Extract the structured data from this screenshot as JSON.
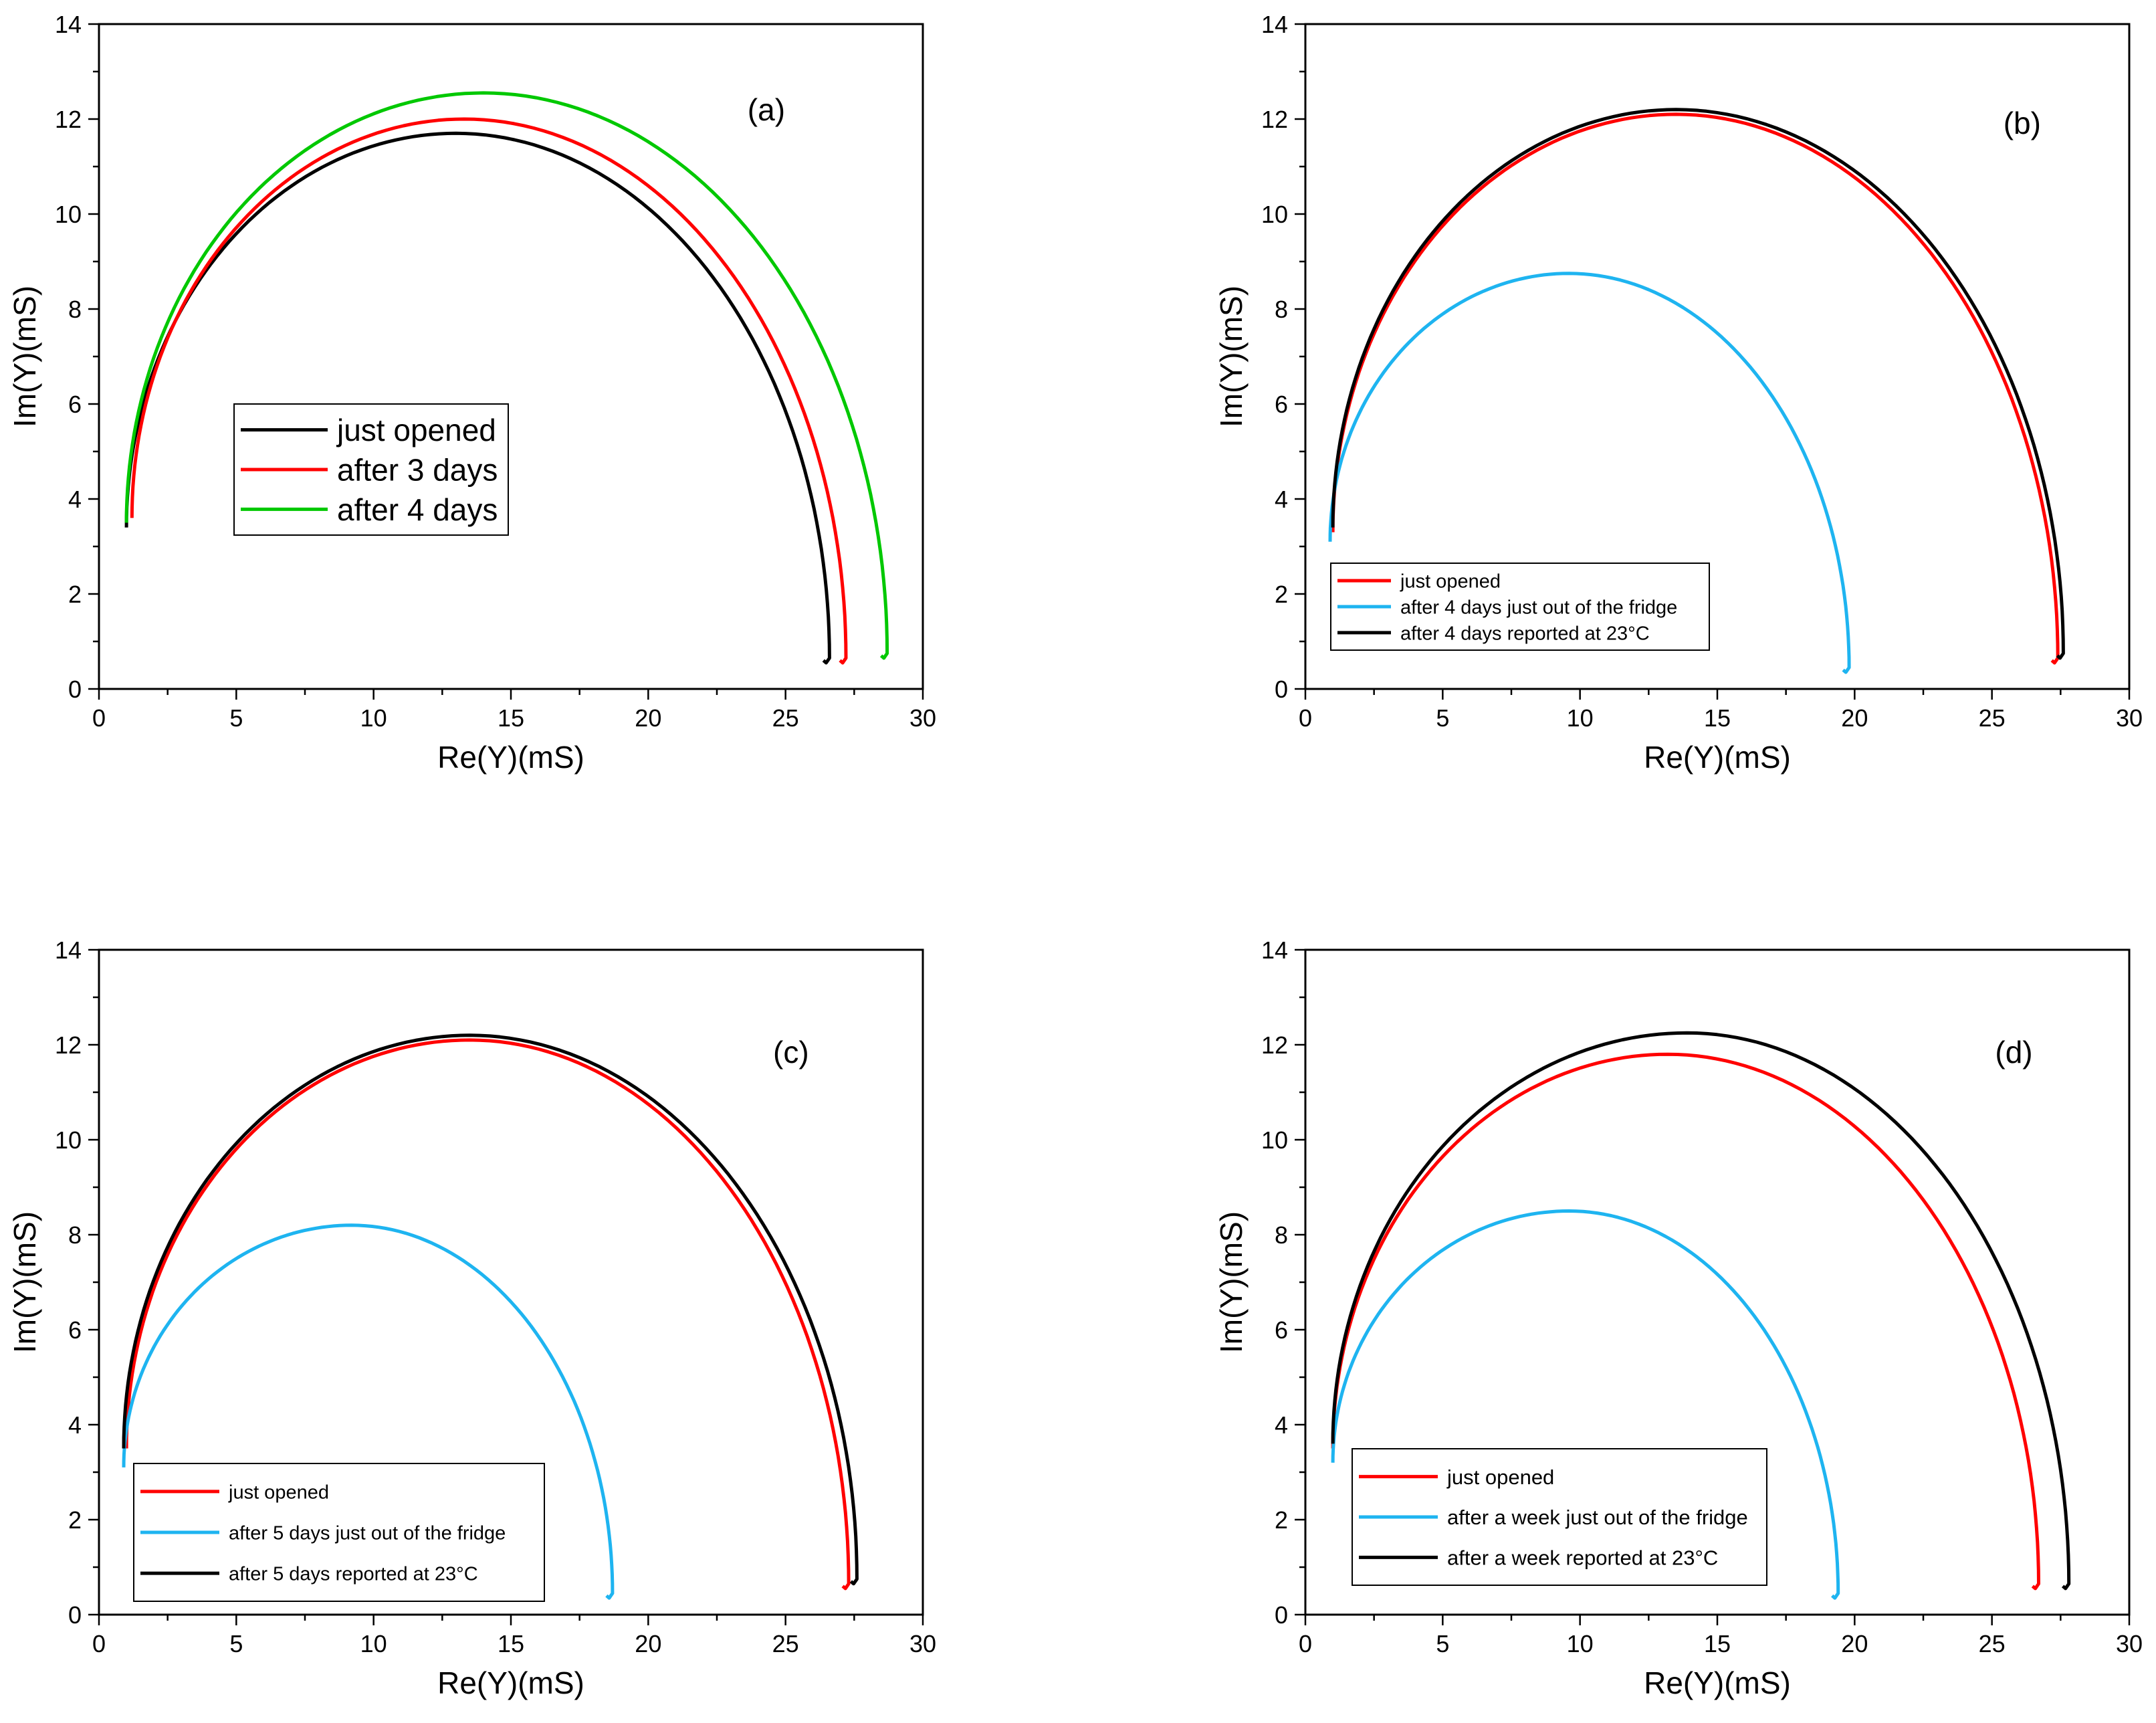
{
  "figure": {
    "description_panels": [
      "a",
      "b",
      "c",
      "d"
    ]
  },
  "chart_data": [
    {
      "type": "line",
      "panel_label": "(a)",
      "xlabel": "Re(Y)(mS)",
      "ylabel": "Im(Y)(mS)",
      "xlim": [
        0,
        30
      ],
      "ylim": [
        0,
        14
      ],
      "xticks": [
        "0",
        "5",
        "10",
        "15",
        "20",
        "25",
        "30"
      ],
      "yticks": [
        "0",
        "2",
        "4",
        "6",
        "8",
        "10",
        "12",
        "14"
      ],
      "legend_position": "center-left",
      "series": [
        {
          "name": "just opened",
          "color": "#000000",
          "start": [
            1.0,
            3.4
          ],
          "peak": [
            13.0,
            11.7
          ],
          "end_max": 26.6,
          "end_y": 0.6
        },
        {
          "name": "after 3 days",
          "color": "#ff0000",
          "start": [
            1.2,
            3.6
          ],
          "peak": [
            13.3,
            12.0
          ],
          "end_max": 27.2,
          "end_y": 0.6
        },
        {
          "name": "after 4 days",
          "color": "#00c800",
          "start": [
            1.0,
            3.5
          ],
          "peak": [
            14.0,
            12.55
          ],
          "end_max": 28.7,
          "end_y": 0.7
        }
      ]
    },
    {
      "type": "line",
      "panel_label": "(b)",
      "xlabel": "Re(Y)(mS)",
      "ylabel": "Im(Y)(mS)",
      "xlim": [
        0,
        30
      ],
      "ylim": [
        0,
        14
      ],
      "xticks": [
        "0",
        "5",
        "10",
        "15",
        "20",
        "25",
        "30"
      ],
      "yticks": [
        "0",
        "2",
        "4",
        "6",
        "8",
        "10",
        "12",
        "14"
      ],
      "legend_position": "bottom-left",
      "series": [
        {
          "name": "just opened",
          "color": "#ff0000",
          "start": [
            1.0,
            3.3
          ],
          "peak": [
            13.5,
            12.1
          ],
          "end_max": 27.4,
          "end_y": 0.6
        },
        {
          "name": "after 4 days just out of the fridge",
          "color": "#1eb4f0",
          "start": [
            0.9,
            3.1
          ],
          "peak": [
            9.6,
            8.75
          ],
          "end_max": 19.8,
          "end_y": 0.4
        },
        {
          "name": "after 4 days reported at 23°C",
          "color": "#000000",
          "start": [
            1.0,
            3.4
          ],
          "peak": [
            13.5,
            12.2
          ],
          "end_max": 27.6,
          "end_y": 0.7
        }
      ]
    },
    {
      "type": "line",
      "panel_label": "(c)",
      "xlabel": "Re(Y)(mS)",
      "ylabel": "Im(Y)(mS)",
      "xlim": [
        0,
        30
      ],
      "ylim": [
        0,
        14
      ],
      "xticks": [
        "0",
        "5",
        "10",
        "15",
        "20",
        "25",
        "30"
      ],
      "yticks": [
        "0",
        "2",
        "4",
        "6",
        "8",
        "10",
        "12",
        "14"
      ],
      "legend_position": "bottom-left",
      "series": [
        {
          "name": "just opened",
          "color": "#ff0000",
          "start": [
            1.0,
            3.5
          ],
          "peak": [
            13.5,
            12.1
          ],
          "end_max": 27.3,
          "end_y": 0.6
        },
        {
          "name": "after 5 days just out of the fridge",
          "color": "#1eb4f0",
          "start": [
            0.9,
            3.1
          ],
          "peak": [
            9.2,
            8.2
          ],
          "end_max": 18.7,
          "end_y": 0.4
        },
        {
          "name": "after 5 days reported at 23°C",
          "color": "#000000",
          "start": [
            0.9,
            3.5
          ],
          "peak": [
            13.5,
            12.2
          ],
          "end_max": 27.6,
          "end_y": 0.7
        }
      ]
    },
    {
      "type": "line",
      "panel_label": "(d)",
      "xlabel": "Re(Y)(mS)",
      "ylabel": "Im(Y)(mS)",
      "xlim": [
        0,
        30
      ],
      "ylim": [
        0,
        14
      ],
      "xticks": [
        "0",
        "5",
        "10",
        "15",
        "20",
        "25",
        "30"
      ],
      "yticks": [
        "0",
        "2",
        "4",
        "6",
        "8",
        "10",
        "12",
        "14"
      ],
      "legend_position": "bottom-left",
      "series": [
        {
          "name": "just opened",
          "color": "#ff0000",
          "start": [
            1.0,
            3.5
          ],
          "peak": [
            13.2,
            11.8
          ],
          "end_max": 26.7,
          "end_y": 0.6
        },
        {
          "name": "after a week just out of the fridge",
          "color": "#1eb4f0",
          "start": [
            1.0,
            3.2
          ],
          "peak": [
            9.6,
            8.5
          ],
          "end_max": 19.4,
          "end_y": 0.4
        },
        {
          "name": "after a week reported at 23°C",
          "color": "#000000",
          "start": [
            1.0,
            3.6
          ],
          "peak": [
            13.9,
            12.25
          ],
          "end_max": 27.8,
          "end_y": 0.6
        }
      ]
    }
  ]
}
